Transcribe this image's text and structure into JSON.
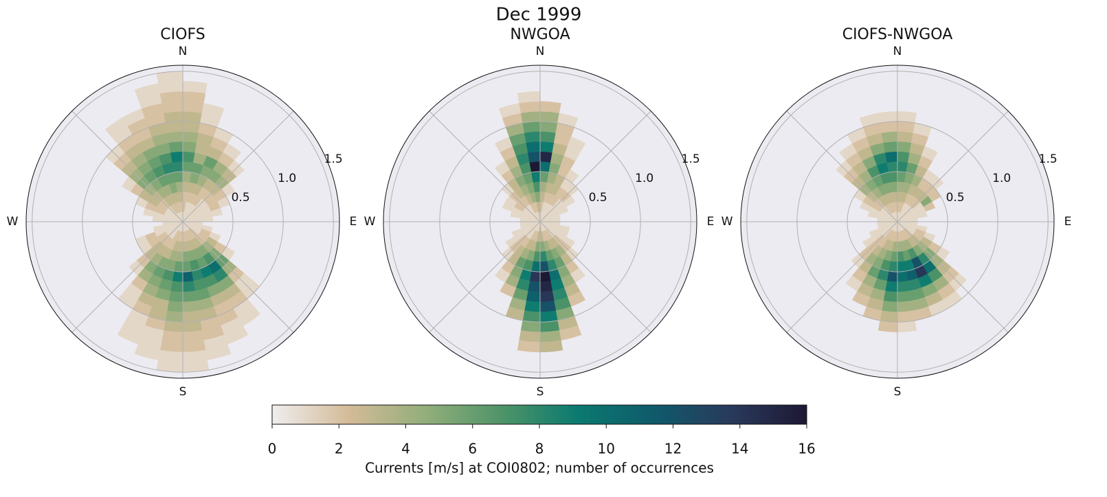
{
  "title": "Dec 1999",
  "direction_bin_width": 10,
  "speed_bin_width": 0.1,
  "rlim": [
    0,
    1.56
  ],
  "rticks": [
    0.5,
    {
      "value": 1,
      "label": "1.0"
    },
    1.5
  ],
  "compass": [
    "N",
    "E",
    "S",
    "W"
  ],
  "panels": [
    {
      "title": "CIOFS",
      "counts": [
        [
          1,
          2,
          2,
          3,
          4,
          6,
          7,
          5,
          4,
          3,
          3,
          2,
          2,
          1
        ],
        [
          1,
          1,
          2,
          3,
          5,
          6,
          4,
          3,
          3,
          2,
          1,
          1
        ],
        [
          1,
          1,
          2,
          3,
          4,
          5,
          6,
          3,
          2,
          1
        ],
        [
          1,
          1,
          2,
          2,
          3,
          5,
          4,
          2,
          1
        ],
        [
          1,
          1,
          1,
          2,
          3,
          4,
          3,
          1
        ],
        [
          1,
          1,
          1,
          2,
          2,
          1
        ],
        [
          1,
          1,
          1,
          2,
          1
        ],
        [
          1,
          1,
          1,
          1
        ],
        [
          1,
          1,
          1
        ],
        [
          1,
          1
        ],
        [
          1,
          1,
          1
        ],
        [
          1,
          1,
          2,
          1
        ],
        [
          1,
          1,
          2,
          3,
          2,
          1
        ],
        [
          1,
          2,
          2,
          4,
          5,
          6,
          4,
          2,
          1,
          1
        ],
        [
          1,
          2,
          3,
          5,
          7,
          10,
          8,
          5,
          3,
          2,
          1,
          1
        ],
        [
          1,
          2,
          3,
          5,
          6,
          9,
          7,
          5,
          3,
          2,
          2,
          1,
          1
        ],
        [
          1,
          2,
          3,
          5,
          7,
          8,
          7,
          6,
          4,
          3,
          2,
          2,
          1,
          1
        ],
        [
          1,
          2,
          3,
          5,
          6,
          11,
          8,
          6,
          4,
          3,
          3,
          2,
          2,
          1,
          1
        ],
        [
          1,
          2,
          3,
          4,
          6,
          9,
          7,
          6,
          5,
          4,
          3,
          2,
          2,
          1,
          1
        ],
        [
          1,
          2,
          3,
          4,
          5,
          7,
          6,
          5,
          3,
          3,
          2,
          1,
          1,
          1
        ],
        [
          1,
          2,
          2,
          3,
          5,
          6,
          5,
          4,
          3,
          2,
          1,
          1,
          1
        ],
        [
          1,
          1,
          2,
          3,
          4,
          5,
          4,
          2,
          1,
          1
        ],
        [
          1,
          1,
          2,
          3,
          3,
          2,
          1
        ],
        [
          1,
          1,
          2,
          2,
          1
        ],
        [
          1,
          1,
          1,
          2,
          1
        ],
        [
          1,
          1,
          1
        ],
        [
          1,
          1
        ],
        [
          1,
          1,
          1
        ],
        [
          1,
          1,
          1,
          1
        ],
        [
          1,
          1,
          2,
          2,
          1
        ],
        [
          1,
          1,
          2,
          3,
          3,
          2,
          1
        ],
        [
          1,
          1,
          2,
          3,
          4,
          5,
          4,
          3,
          2,
          1
        ],
        [
          1,
          2,
          3,
          4,
          5,
          6,
          5,
          4,
          3,
          2,
          1,
          1
        ],
        [
          1,
          2,
          3,
          4,
          6,
          7,
          6,
          5,
          3,
          2,
          2,
          1
        ],
        [
          1,
          2,
          3,
          5,
          6,
          8,
          7,
          5,
          4,
          3,
          2,
          2,
          1,
          1
        ],
        [
          1,
          2,
          3,
          4,
          6,
          8,
          9,
          6,
          4,
          3,
          3,
          2,
          2,
          1,
          1
        ]
      ]
    },
    {
      "title": "NWGOA",
      "counts": [
        [
          1,
          2,
          3,
          4,
          6,
          10,
          15,
          9,
          7,
          5,
          4,
          2
        ],
        [
          1,
          1,
          2,
          3,
          4,
          5,
          4,
          3,
          2,
          2,
          1
        ],
        [
          1,
          1,
          2,
          3,
          3,
          2,
          2,
          1,
          1
        ],
        [
          1,
          1,
          2,
          2,
          1,
          1
        ],
        [
          1,
          1,
          1,
          2,
          1
        ],
        [
          1,
          1,
          1,
          1
        ],
        [
          1,
          1,
          1
        ],
        [
          1,
          1
        ],
        [
          1,
          1
        ],
        [
          1,
          1
        ],
        [
          1,
          1,
          1
        ],
        [
          1,
          1,
          1
        ],
        [
          1,
          1,
          1,
          1
        ],
        [
          1,
          1,
          2,
          2,
          1
        ],
        [
          1,
          2,
          3,
          4,
          3,
          2,
          1
        ],
        [
          1,
          2,
          3,
          5,
          6,
          5,
          4,
          3,
          2
        ],
        [
          1,
          2,
          4,
          6,
          8,
          10,
          9,
          8,
          7,
          5,
          3,
          2
        ],
        [
          2,
          3,
          5,
          8,
          12,
          16,
          15,
          14,
          12,
          9,
          7,
          4,
          3
        ],
        [
          2,
          3,
          5,
          7,
          10,
          14,
          12,
          11,
          9,
          7,
          5,
          3,
          2
        ],
        [
          1,
          2,
          3,
          5,
          7,
          9,
          8,
          6,
          4,
          3
        ],
        [
          1,
          2,
          3,
          4,
          6,
          5,
          4,
          2
        ],
        [
          1,
          1,
          2,
          3,
          3,
          2,
          1
        ],
        [
          1,
          1,
          2,
          2,
          1
        ],
        [
          1,
          1,
          1,
          1
        ],
        [
          1,
          1,
          1
        ],
        [
          1,
          1
        ],
        [
          1,
          1
        ],
        [
          1,
          1
        ],
        [
          1,
          1,
          1
        ],
        [
          1,
          1,
          1,
          1
        ],
        [
          1,
          1,
          2,
          1
        ],
        [
          1,
          1,
          2,
          2,
          1
        ],
        [
          1,
          1,
          2,
          3,
          3,
          2,
          1
        ],
        [
          1,
          2,
          3,
          4,
          5,
          4,
          3,
          2,
          1
        ],
        [
          1,
          2,
          4,
          5,
          6,
          7,
          8,
          7,
          6,
          4,
          2,
          1
        ],
        [
          2,
          3,
          5,
          7,
          9,
          16,
          12,
          10,
          8,
          6,
          4,
          2,
          1
        ]
      ]
    },
    {
      "title": "CIOFS-NWGOA",
      "counts": [
        [
          1,
          2,
          3,
          4,
          6,
          8,
          7,
          5,
          3,
          2,
          1
        ],
        [
          1,
          2,
          3,
          4,
          5,
          6,
          4,
          3,
          2,
          1
        ],
        [
          1,
          1,
          2,
          3,
          4,
          3,
          2,
          1
        ],
        [
          1,
          1,
          2,
          3,
          2,
          1
        ],
        [
          1,
          1,
          2,
          3,
          2,
          1
        ],
        [
          1,
          1,
          1,
          5,
          2
        ],
        [
          1,
          1,
          1,
          2
        ],
        [
          1,
          1,
          1
        ],
        [
          1,
          1
        ],
        [
          1,
          1
        ],
        [
          1,
          1,
          1
        ],
        [
          1,
          1,
          2,
          1
        ],
        [
          1,
          1,
          2,
          3,
          2,
          1
        ],
        [
          1,
          2,
          3,
          4,
          5,
          4,
          3,
          2,
          1
        ],
        [
          1,
          2,
          3,
          5,
          8,
          10,
          7,
          4,
          2,
          1
        ],
        [
          1,
          2,
          4,
          7,
          12,
          14,
          9,
          5,
          3,
          1
        ],
        [
          1,
          2,
          4,
          6,
          9,
          11,
          8,
          6,
          4,
          2
        ],
        [
          1,
          2,
          4,
          7,
          9,
          10,
          8,
          6,
          4,
          2,
          1
        ],
        [
          1,
          2,
          4,
          6,
          8,
          12,
          9,
          7,
          5,
          3,
          2
        ],
        [
          1,
          2,
          3,
          5,
          7,
          8,
          6,
          4,
          3,
          2
        ],
        [
          1,
          2,
          3,
          4,
          5,
          6,
          4,
          3,
          2
        ],
        [
          1,
          2,
          2,
          3,
          4,
          3,
          2,
          1
        ],
        [
          1,
          1,
          2,
          2,
          2,
          1
        ],
        [
          1,
          1,
          1,
          1
        ],
        [
          1,
          1,
          1
        ],
        [
          1,
          1
        ],
        [
          1,
          1
        ],
        [
          1,
          1
        ],
        [
          1,
          1,
          1
        ],
        [
          1,
          1,
          1,
          1
        ],
        [
          1,
          1,
          2,
          2,
          1
        ],
        [
          1,
          1,
          2,
          3,
          4,
          3,
          2,
          1
        ],
        [
          1,
          2,
          3,
          4,
          5,
          4,
          3,
          2,
          1
        ],
        [
          1,
          2,
          3,
          5,
          6,
          7,
          5,
          3,
          2,
          1
        ],
        [
          1,
          2,
          3,
          5,
          7,
          9,
          8,
          5,
          3,
          2,
          1
        ],
        [
          1,
          2,
          3,
          5,
          7,
          8,
          10,
          6,
          4,
          2,
          1
        ]
      ]
    }
  ],
  "colorbar": {
    "label": "Currents [m/s] at COI0802; number of occurrences",
    "lim": [
      0,
      16
    ],
    "ticks": [
      0,
      2,
      4,
      6,
      8,
      10,
      12,
      14,
      16
    ],
    "colors": [
      "#efedee",
      "#d4bb98",
      "#93ae7b",
      "#4f9468",
      "#0b7a70",
      "#0f5a6b",
      "#293a5c",
      "#1d1833"
    ]
  }
}
